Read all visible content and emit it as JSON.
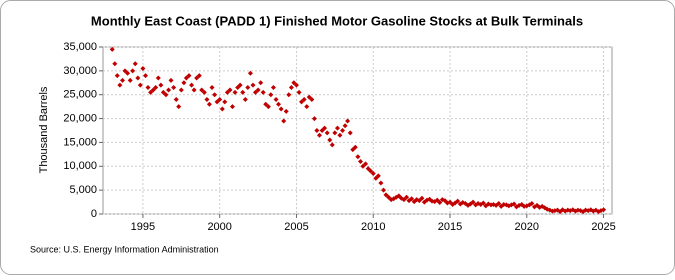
{
  "chart_data": {
    "type": "scatter",
    "title": "Monthly East Coast (PADD 1) Finished Motor Gasoline Stocks at Bulk Terminals",
    "y_label": "Thousand Barrels",
    "source": "Source: U.S. Energy Information Administration",
    "color": "#c00000",
    "grid": true,
    "xlim": [
      1992.4,
      2025.55
    ],
    "ylim": [
      0,
      35000
    ],
    "xticks": [
      1995,
      2000,
      2005,
      2010,
      2015,
      2020,
      2025
    ],
    "yticks": [
      0,
      {
        "value": 5000,
        "label": "5,000"
      },
      {
        "value": 10000,
        "label": "10,000"
      },
      {
        "value": 15000,
        "label": "15,000"
      },
      {
        "value": 20000,
        "label": "20,000"
      },
      {
        "value": 25000,
        "label": "25,000"
      },
      {
        "value": 30000,
        "label": "30,000"
      },
      {
        "value": 35000,
        "label": "35,000"
      }
    ],
    "x": [
      1993,
      1993.17,
      1993.33,
      1993.5,
      1993.67,
      1993.83,
      1994,
      1994.17,
      1994.33,
      1994.5,
      1994.67,
      1994.83,
      1995,
      1995.17,
      1995.33,
      1995.5,
      1995.67,
      1995.83,
      1996,
      1996.17,
      1996.33,
      1996.5,
      1996.67,
      1996.83,
      1997,
      1997.17,
      1997.33,
      1997.5,
      1997.67,
      1997.83,
      1998,
      1998.17,
      1998.33,
      1998.5,
      1998.67,
      1998.83,
      1999,
      1999.17,
      1999.33,
      1999.5,
      1999.67,
      1999.83,
      2000,
      2000.17,
      2000.33,
      2000.5,
      2000.67,
      2000.83,
      2001,
      2001.17,
      2001.33,
      2001.5,
      2001.67,
      2001.83,
      2002,
      2002.17,
      2002.33,
      2002.5,
      2002.67,
      2002.83,
      2003,
      2003.17,
      2003.33,
      2003.5,
      2003.67,
      2003.83,
      2004,
      2004.17,
      2004.33,
      2004.5,
      2004.67,
      2004.83,
      2005,
      2005.17,
      2005.33,
      2005.5,
      2005.67,
      2005.83,
      2006,
      2006.17,
      2006.33,
      2006.5,
      2006.67,
      2006.83,
      2007,
      2007.17,
      2007.33,
      2007.5,
      2007.67,
      2007.83,
      2008,
      2008.17,
      2008.33,
      2008.5,
      2008.67,
      2008.83,
      2009,
      2009.17,
      2009.33,
      2009.5,
      2009.67,
      2009.83,
      2010,
      2010.17,
      2010.33,
      2010.5,
      2010.67,
      2010.83,
      2011,
      2011.17,
      2011.33,
      2011.5,
      2011.67,
      2011.83,
      2012,
      2012.17,
      2012.33,
      2012.5,
      2012.67,
      2012.83,
      2013,
      2013.17,
      2013.33,
      2013.5,
      2013.67,
      2013.83,
      2014,
      2014.17,
      2014.33,
      2014.5,
      2014.67,
      2014.83,
      2015,
      2015.17,
      2015.33,
      2015.5,
      2015.67,
      2015.83,
      2016,
      2016.17,
      2016.33,
      2016.5,
      2016.67,
      2016.83,
      2017,
      2017.17,
      2017.33,
      2017.5,
      2017.67,
      2017.83,
      2018,
      2018.17,
      2018.33,
      2018.5,
      2018.67,
      2018.83,
      2019,
      2019.17,
      2019.33,
      2019.5,
      2019.67,
      2019.83,
      2020,
      2020.17,
      2020.33,
      2020.5,
      2020.67,
      2020.83,
      2021,
      2021.17,
      2021.33,
      2021.5,
      2021.67,
      2021.83,
      2022,
      2022.17,
      2022.33,
      2022.5,
      2022.67,
      2022.83,
      2023,
      2023.17,
      2023.33,
      2023.5,
      2023.67,
      2023.83,
      2024,
      2024.17,
      2024.33,
      2024.5,
      2024.67,
      2024.83,
      2025
    ],
    "values": [
      34500,
      31500,
      29000,
      27000,
      28000,
      30000,
      29500,
      28000,
      30000,
      31500,
      28500,
      27000,
      30500,
      29000,
      26500,
      25500,
      26000,
      26500,
      28500,
      27000,
      25500,
      25000,
      26000,
      28000,
      26500,
      24000,
      22500,
      26000,
      27500,
      28500,
      29000,
      27000,
      26000,
      28500,
      29000,
      26000,
      25500,
      24000,
      23000,
      26500,
      25000,
      23500,
      24000,
      22000,
      23500,
      25500,
      26000,
      22500,
      25500,
      26500,
      27000,
      25500,
      24000,
      26500,
      29500,
      27000,
      25500,
      26000,
      27500,
      25500,
      23000,
      22500,
      25000,
      26500,
      24000,
      23000,
      22000,
      19500,
      21500,
      25000,
      26500,
      27500,
      27000,
      25500,
      23500,
      24000,
      22500,
      24500,
      24000,
      20000,
      17500,
      16500,
      17500,
      18000,
      17000,
      15500,
      14500,
      17000,
      18000,
      16500,
      17500,
      18500,
      19500,
      17000,
      13500,
      14000,
      12000,
      11000,
      10000,
      10500,
      9500,
      9000,
      8500,
      7500,
      8000,
      6500,
      5000,
      4000,
      3500,
      3000,
      3200,
      3500,
      3800,
      3300,
      3000,
      3500,
      2800,
      3200,
      2600,
      3000,
      2800,
      3300,
      2500,
      2900,
      3100,
      2700,
      2600,
      2900,
      2400,
      3000,
      2800,
      2300,
      2500,
      2000,
      2300,
      2700,
      2100,
      2400,
      2200,
      1800,
      2100,
      2500,
      1900,
      2200,
      2000,
      2300,
      1700,
      2100,
      1900,
      2000,
      1800,
      2200,
      1600,
      2000,
      1900,
      1700,
      1900,
      2100,
      1500,
      1800,
      2000,
      1600,
      1700,
      1900,
      2200,
      1500,
      1800,
      1400,
      1600,
      1300,
      1000,
      800,
      600,
      700,
      800,
      500,
      900,
      600,
      800,
      700,
      900,
      600,
      800,
      700,
      500,
      800,
      700,
      900,
      600,
      800,
      500,
      700,
      900
    ]
  }
}
